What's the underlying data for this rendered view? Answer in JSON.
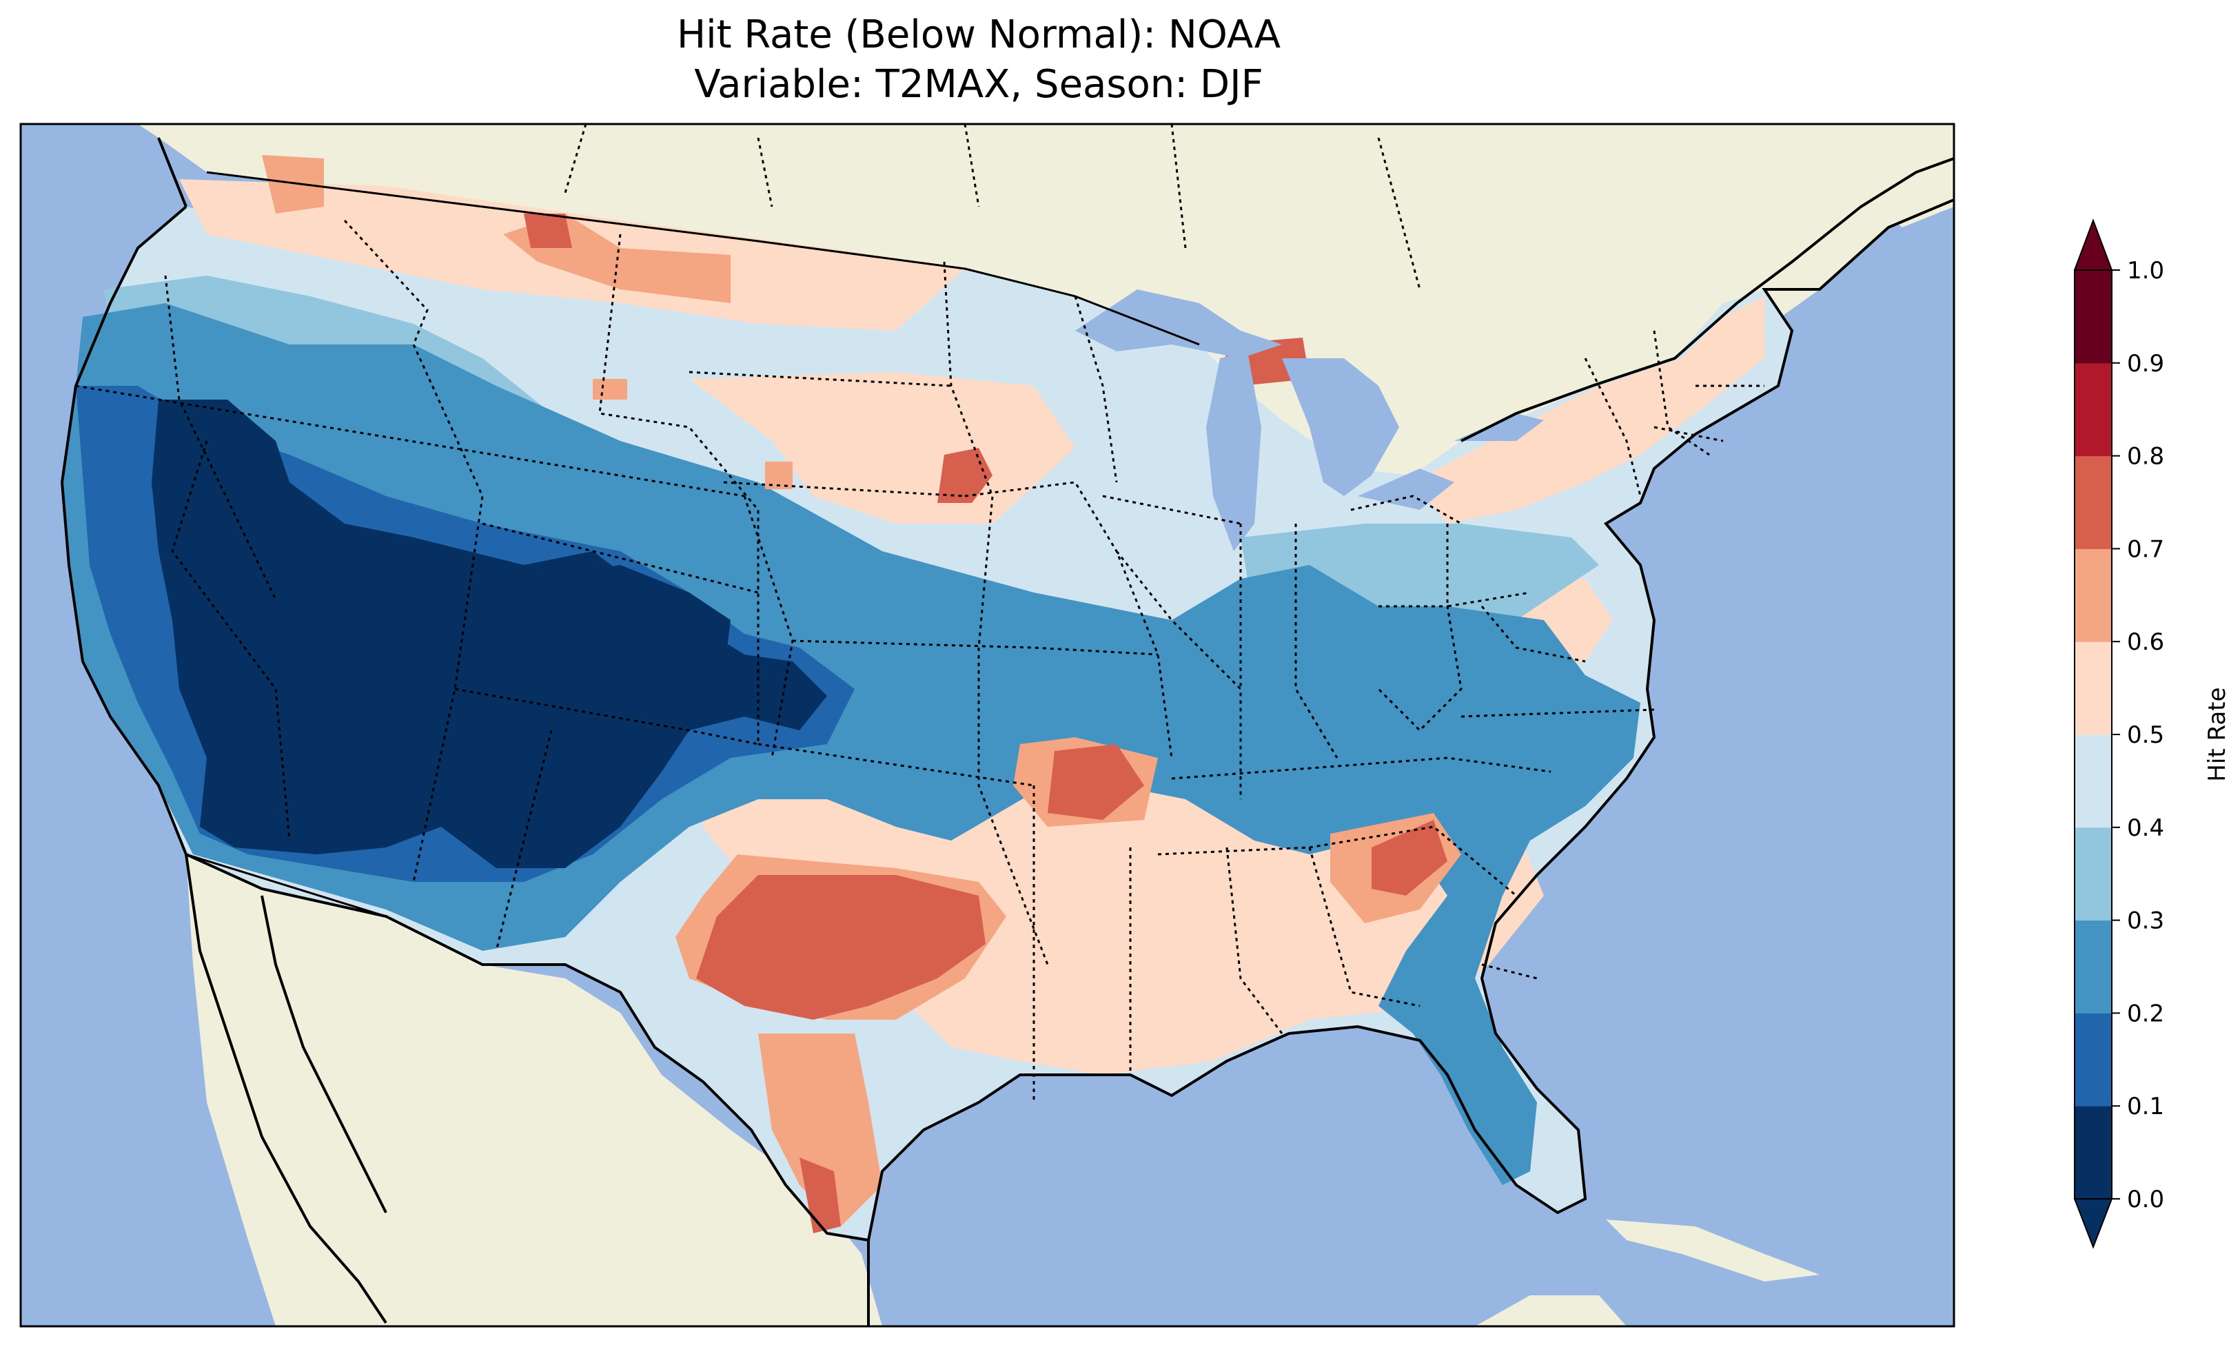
{
  "title": {
    "line1": "Hit Rate (Below Normal): NOAA",
    "line2": "Variable: T2MAX, Season: DJF"
  },
  "colorbar": {
    "label": "Hit Rate",
    "ticks": [
      "0.0",
      "0.1",
      "0.2",
      "0.3",
      "0.4",
      "0.5",
      "0.6",
      "0.7",
      "0.8",
      "0.9",
      "1.0"
    ],
    "colors": [
      "#053061",
      "#2166ac",
      "#4393c3",
      "#92c5de",
      "#d1e5f0",
      "#fddbc7",
      "#f4a582",
      "#d6604d",
      "#b2182b",
      "#67001f"
    ],
    "extend": "both"
  },
  "map": {
    "ocean_color": "#97b6e1",
    "land_color": "#efefdb",
    "projection": "Lambert conformal",
    "region": "Contiguous United States",
    "field": "Hit Rate"
  }
}
